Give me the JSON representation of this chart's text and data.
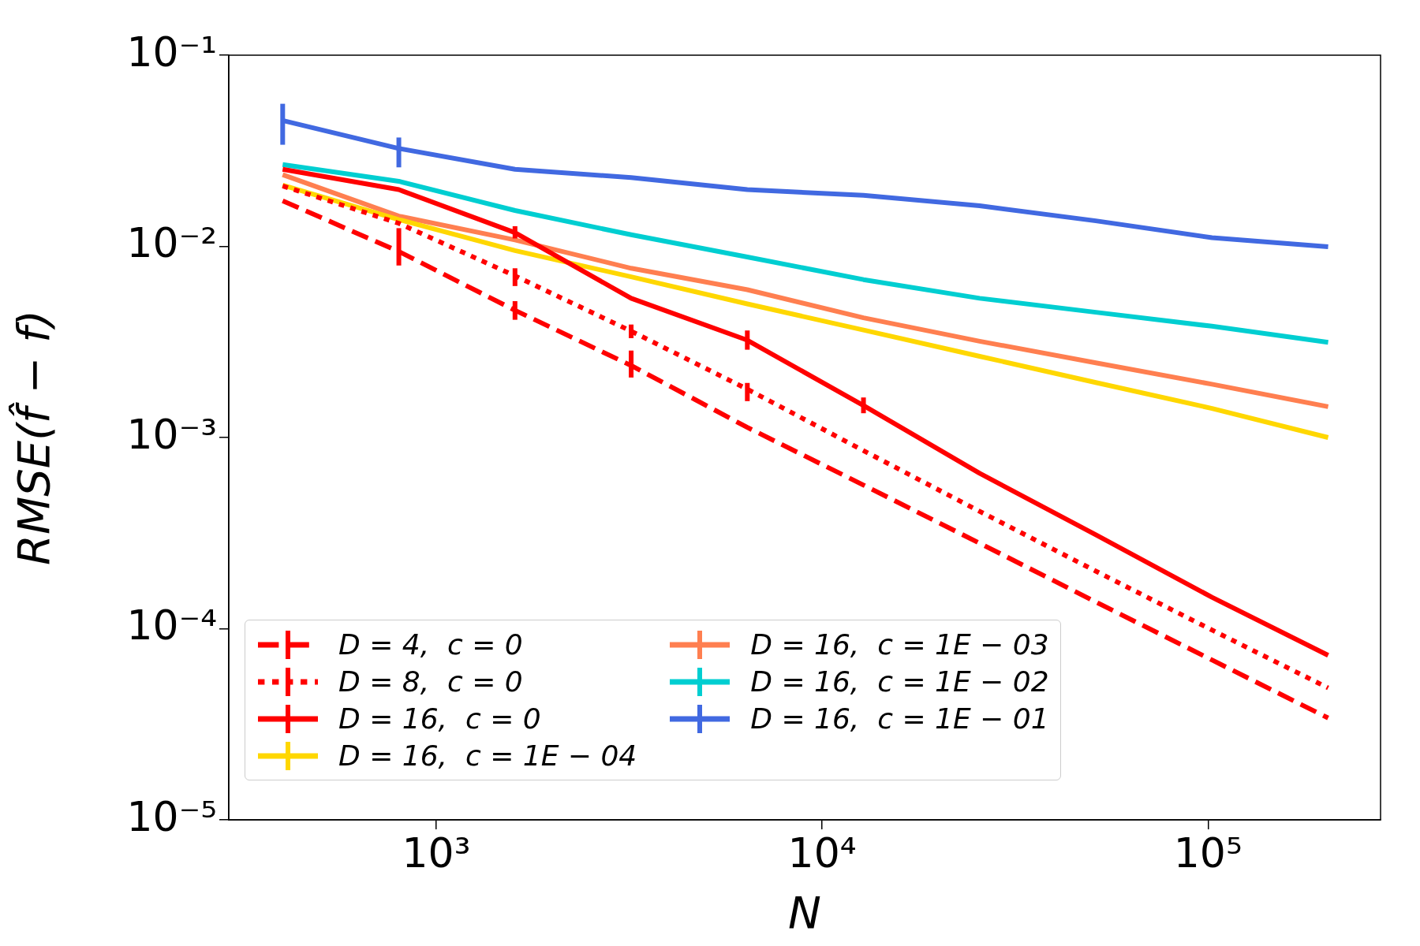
{
  "chart_data": {
    "type": "line",
    "xlabel": "N",
    "ylabel": "RMSE(f̂ − f)",
    "log": "xy",
    "legend": "bottom left",
    "marker": "none",
    "x": [
      400,
      800,
      1600,
      3200,
      6400,
      12800,
      25600,
      51200,
      102400,
      204800
    ],
    "xlim": [
      290,
      280000
    ],
    "xticks": [
      {
        "value": 1000,
        "label": "10³"
      },
      {
        "value": 10000,
        "label": "10⁴"
      },
      {
        "value": 100000,
        "label": "10⁵"
      }
    ],
    "ylim": [
      1e-05,
      0.1
    ],
    "yticks": [
      {
        "value": 1e-05,
        "label": "10⁻⁵"
      },
      {
        "value": 0.0001,
        "label": "10⁻⁴"
      },
      {
        "value": 0.001,
        "label": "10⁻³"
      },
      {
        "value": 0.01,
        "label": "10⁻²"
      },
      {
        "value": 0.1,
        "label": "10⁻¹"
      }
    ],
    "grid": false,
    "series": [
      {
        "name": "D = 4,  c = 0",
        "color": "#ff0000",
        "line_style": "dashed",
        "values": [
          0.0173,
          0.0094,
          0.00463,
          0.00238,
          0.00113,
          0.000564,
          0.00028,
          0.000138,
          6.86e-05,
          3.41e-05
        ],
        "errors": [
          null,
          [
            0.00794,
            0.01245
          ],
          [
            0.00413,
            0.00517
          ],
          [
            0.00206,
            0.00285
          ],
          null,
          null,
          null,
          null,
          null,
          null
        ]
      },
      {
        "name": "D = 8,  c = 0",
        "color": "#ff0000",
        "line_style": "dotted",
        "values": [
          0.0207,
          0.0132,
          0.00701,
          0.0036,
          0.00179,
          0.000854,
          0.000411,
          0.0002,
          9.84e-05,
          4.9e-05
        ],
        "errors": [
          null,
          null,
          [
            0.0062,
            0.00768
          ],
          [
            0.00331,
            0.0039
          ],
          [
            0.00155,
            0.00193
          ],
          null,
          null,
          null,
          null,
          null
        ]
      },
      {
        "name": "D = 16,  c = 0",
        "color": "#ff0000",
        "line_style": "solid",
        "values": [
          0.0253,
          0.0198,
          0.0118,
          0.00535,
          0.00323,
          0.00147,
          0.00065,
          0.00031,
          0.000146,
          7.26e-05
        ],
        "errors": [
          null,
          null,
          [
            0.011,
            0.01275
          ],
          null,
          [
            0.00288,
            0.00363
          ],
          [
            0.00134,
            0.00162
          ],
          null,
          null,
          null,
          null
        ]
      },
      {
        "name": "D = 16,  c = 1E − 04",
        "color": "#ffd700",
        "line_style": "solid",
        "values": [
          0.0209,
          0.0138,
          0.0095,
          0.00693,
          0.005,
          0.00365,
          0.00266,
          0.00194,
          0.00142,
          0.001
        ]
      },
      {
        "name": "D = 16,  c = 1E − 03",
        "color": "#ff7f50",
        "line_style": "solid",
        "values": [
          0.0237,
          0.0144,
          0.0108,
          0.00768,
          0.00593,
          0.00423,
          0.00319,
          0.00246,
          0.0019,
          0.00145
        ]
      },
      {
        "name": "D = 16,  c = 1E − 02",
        "color": "#00ced1",
        "line_style": "solid",
        "values": [
          0.0268,
          0.0219,
          0.0154,
          0.0115,
          0.0088,
          0.0067,
          0.00535,
          0.00452,
          0.00382,
          0.00315
        ]
      },
      {
        "name": "D = 16,  c = 1E − 01",
        "color": "#4169e1",
        "line_style": "solid",
        "values": [
          0.0455,
          0.0325,
          0.0253,
          0.0229,
          0.0198,
          0.0185,
          0.0163,
          0.0136,
          0.0111,
          0.00995
        ],
        "errors": [
          [
            0.034,
            0.0557
          ],
          [
            0.0259,
            0.0371
          ],
          null,
          null,
          null,
          null,
          null,
          null,
          null,
          null
        ]
      }
    ]
  }
}
